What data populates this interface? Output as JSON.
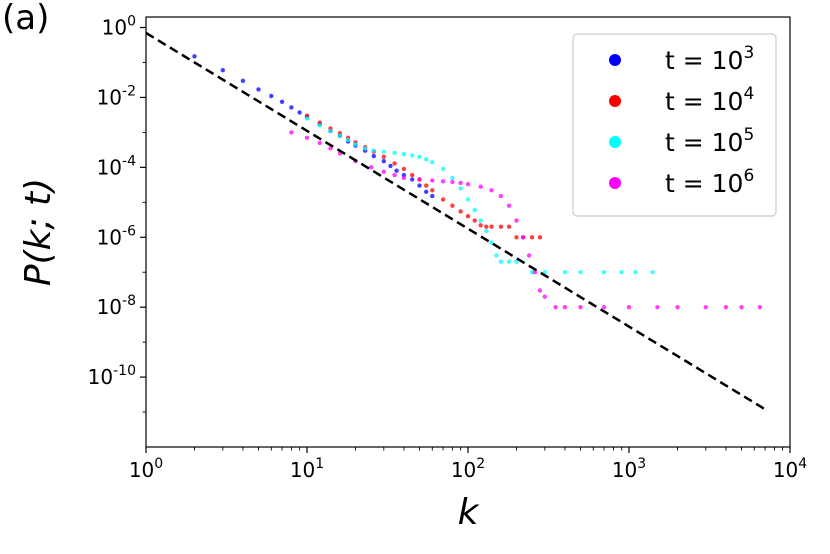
{
  "panel_label": "(a)",
  "chart_data": {
    "type": "scatter",
    "xlabel": "k",
    "ylabel": "P(k; t)",
    "xscale": "log",
    "yscale": "log",
    "xlim": [
      1,
      10000
    ],
    "ylim": [
      1e-12,
      2
    ],
    "grid": false,
    "legend_position": "top-right",
    "x_ticks": [
      {
        "value": 1,
        "base": "10",
        "exp": "0"
      },
      {
        "value": 10,
        "base": "10",
        "exp": "1"
      },
      {
        "value": 100,
        "base": "10",
        "exp": "2"
      },
      {
        "value": 1000,
        "base": "10",
        "exp": "3"
      },
      {
        "value": 10000,
        "base": "10",
        "exp": "4"
      }
    ],
    "y_ticks": [
      {
        "value": 1,
        "base": "10",
        "exp": "0"
      },
      {
        "value": 0.01,
        "base": "10",
        "exp": "-2"
      },
      {
        "value": 0.0001,
        "base": "10",
        "exp": "-4"
      },
      {
        "value": 1e-06,
        "base": "10",
        "exp": "-6"
      },
      {
        "value": 1e-08,
        "base": "10",
        "exp": "-8"
      },
      {
        "value": 1e-10,
        "base": "10",
        "exp": "-10"
      }
    ],
    "reference_line": {
      "style": "dashed",
      "color": "#000000",
      "x": [
        1,
        7000
      ],
      "y": [
        0.7,
        1.2e-11
      ]
    },
    "series": [
      {
        "name_prefix": "t = 10",
        "name_exp": "3",
        "color": "#0000ff",
        "x": [
          2,
          3,
          4,
          5,
          6,
          7,
          8,
          9,
          10,
          12,
          14,
          16,
          18,
          20,
          23,
          26,
          30,
          33,
          36,
          40,
          45,
          50,
          55,
          60
        ],
        "y": [
          0.15,
          0.06,
          0.03,
          0.017,
          0.011,
          0.0075,
          0.0052,
          0.0037,
          0.0028,
          0.0017,
          0.0011,
          0.0008,
          0.00055,
          0.00042,
          0.0003,
          0.00021,
          0.00015,
          0.00011,
          8e-05,
          6e-05,
          4.5e-05,
          3e-05,
          2e-05,
          1.5e-05
        ]
      },
      {
        "name_prefix": "t = 10",
        "name_exp": "4",
        "color": "#ff0000",
        "x": [
          10,
          12,
          14,
          16,
          18,
          20,
          23,
          26,
          30,
          35,
          40,
          45,
          50,
          55,
          60,
          70,
          80,
          90,
          100,
          110,
          120,
          130,
          140,
          160,
          180,
          200,
          220,
          250,
          280
        ],
        "y": [
          0.003,
          0.0019,
          0.0013,
          0.00095,
          0.0007,
          0.00052,
          0.00038,
          0.00028,
          0.0002,
          0.00013,
          9e-05,
          6e-05,
          4.5e-05,
          3e-05,
          2.2e-05,
          1.2e-05,
          8e-06,
          5.5e-06,
          4e-06,
          3e-06,
          2.2e-06,
          2e-06,
          2e-06,
          2e-06,
          2e-06,
          1e-06,
          1e-06,
          1e-06,
          1e-06
        ]
      },
      {
        "name_prefix": "t = 10",
        "name_exp": "5",
        "color": "#00ffff",
        "x": [
          10,
          12,
          14,
          16,
          18,
          20,
          23,
          26,
          30,
          35,
          40,
          45,
          50,
          55,
          60,
          70,
          80,
          90,
          100,
          110,
          120,
          130,
          140,
          150,
          160,
          180,
          200,
          250,
          300,
          400,
          500,
          700,
          900,
          1100,
          1400
        ],
        "y": [
          0.0025,
          0.0016,
          0.0011,
          0.0008,
          0.0006,
          0.00045,
          0.00035,
          0.0003,
          0.00028,
          0.00026,
          0.00024,
          0.00022,
          0.0002,
          0.00017,
          0.00014,
          9e-05,
          5e-05,
          2.5e-05,
          1.2e-05,
          6e-06,
          3e-06,
          1.5e-06,
          7e-07,
          3e-07,
          2e-07,
          2e-07,
          2e-07,
          1e-07,
          1e-07,
          1e-07,
          1e-07,
          1e-07,
          1e-07,
          1e-07,
          1e-07
        ]
      },
      {
        "name_prefix": "t = 10",
        "name_exp": "6",
        "color": "#ff00ff",
        "x": [
          8,
          10,
          12,
          14,
          16,
          20,
          25,
          30,
          35,
          40,
          50,
          60,
          70,
          80,
          90,
          100,
          120,
          140,
          160,
          180,
          200,
          220,
          240,
          260,
          280,
          300,
          350,
          400,
          500,
          700,
          1000,
          1500,
          2000,
          3000,
          4000,
          5000,
          6500
        ],
        "y": [
          0.001,
          0.0007,
          0.0005,
          0.00035,
          0.00025,
          0.00015,
          0.0001,
          7.5e-05,
          6e-05,
          5e-05,
          4.5e-05,
          4.2e-05,
          4e-05,
          3.8e-05,
          3.6e-05,
          3.3e-05,
          2.8e-05,
          2.2e-05,
          1.5e-05,
          8e-06,
          3e-06,
          1e-06,
          3e-07,
          1e-07,
          3e-08,
          2e-08,
          1e-08,
          1e-08,
          1e-08,
          1e-08,
          1e-08,
          1e-08,
          1e-08,
          1e-08,
          1e-08,
          1e-08,
          1e-08
        ]
      }
    ]
  }
}
